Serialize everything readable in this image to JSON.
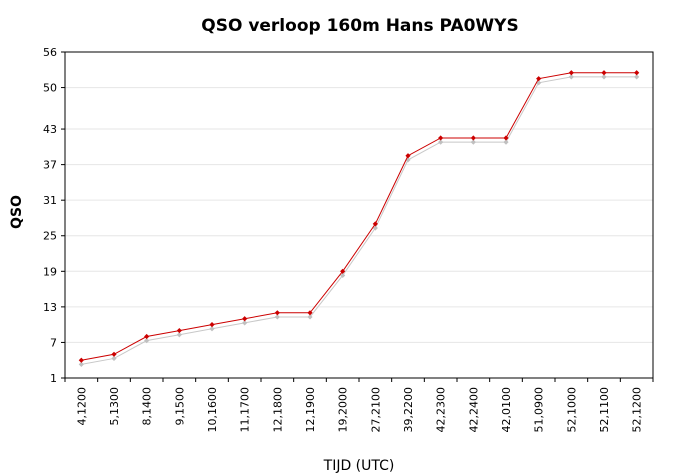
{
  "chart_data": {
    "type": "line",
    "title": "QSO verloop 160m Hans PA0WYS",
    "xlabel": "TIJD (UTC)",
    "ylabel": "QSO",
    "categories": [
      "4,1200",
      "5,1300",
      "8,1400",
      "9,1500",
      "10,1600",
      "11,1700",
      "12,1800",
      "12,1900",
      "19,2000",
      "27,2100",
      "39,2200",
      "42,2300",
      "42,2400",
      "42,0100",
      "51,0900",
      "52,1000",
      "52,1100",
      "52,1200"
    ],
    "yticks": [
      1,
      7,
      13,
      19,
      25,
      31,
      37,
      43,
      50,
      56
    ],
    "ylim": [
      1,
      56
    ],
    "grid": false,
    "legend": "none",
    "series": [
      {
        "values": [
          4,
          5,
          8,
          9,
          10,
          11,
          12,
          12,
          19,
          27,
          38.5,
          41.5,
          41.5,
          41.5,
          51.5,
          52.5,
          52.5,
          52.5
        ],
        "color": "#cc0000",
        "marker_color": "#cc0000"
      },
      {
        "values": [
          3.3,
          4.3,
          7.3,
          8.3,
          9.3,
          10.3,
          11.3,
          11.3,
          18.3,
          26.3,
          37.8,
          40.8,
          40.8,
          40.8,
          50.8,
          51.8,
          51.8,
          51.8
        ],
        "color": "#c8c8c8",
        "marker_color": "#c0c0c0"
      }
    ],
    "colors": {
      "plot_border": "#000000",
      "grid_line": "#e6e6e6"
    }
  }
}
